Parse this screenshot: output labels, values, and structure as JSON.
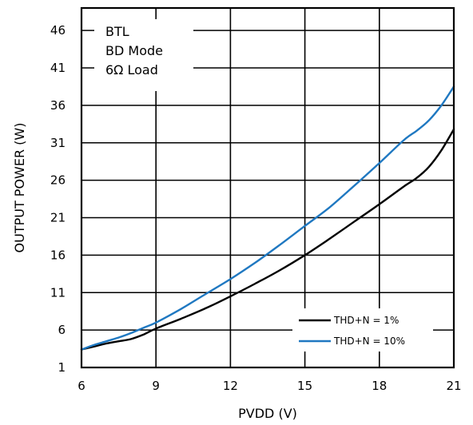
{
  "chart_data": {
    "type": "line",
    "title": "",
    "xlabel": "PVDD (V)",
    "ylabel": "OUTPUT POWER (W)",
    "xlim": [
      6,
      21
    ],
    "ylim": [
      1,
      49
    ],
    "x_ticks": [
      6,
      9,
      12,
      15,
      18,
      21
    ],
    "y_ticks": [
      1,
      6,
      11,
      16,
      21,
      26,
      31,
      36,
      41,
      46
    ],
    "grid": true,
    "annotation": [
      "BTL",
      "BD Mode",
      "6Ω Load"
    ],
    "legend_position": "bottom-right",
    "series": [
      {
        "name": "THD+N = 1%",
        "color": "#000000",
        "x": [
          6,
          6.5,
          7,
          7.5,
          8,
          8.5,
          9,
          10,
          11,
          12,
          13,
          14,
          15,
          16,
          17,
          18,
          19,
          19.5,
          20,
          20.5,
          21
        ],
        "y": [
          3.4,
          3.8,
          4.2,
          4.5,
          4.8,
          5.4,
          6.2,
          7.5,
          8.9,
          10.5,
          12.2,
          14.0,
          16.0,
          18.2,
          20.5,
          22.8,
          25.2,
          26.3,
          27.8,
          30.0,
          32.8
        ]
      },
      {
        "name": "THD+N = 10%",
        "color": "#1f78c1",
        "x": [
          6,
          6.5,
          7,
          7.5,
          8,
          8.5,
          9,
          10,
          11,
          12,
          13,
          14,
          15,
          16,
          17,
          18,
          19,
          19.5,
          20,
          20.5,
          21
        ],
        "y": [
          3.4,
          4.0,
          4.5,
          5.0,
          5.6,
          6.3,
          7.0,
          8.8,
          10.8,
          12.8,
          15.0,
          17.4,
          19.9,
          22.4,
          25.3,
          28.3,
          31.4,
          32.6,
          34.0,
          36.0,
          38.5
        ]
      }
    ]
  }
}
